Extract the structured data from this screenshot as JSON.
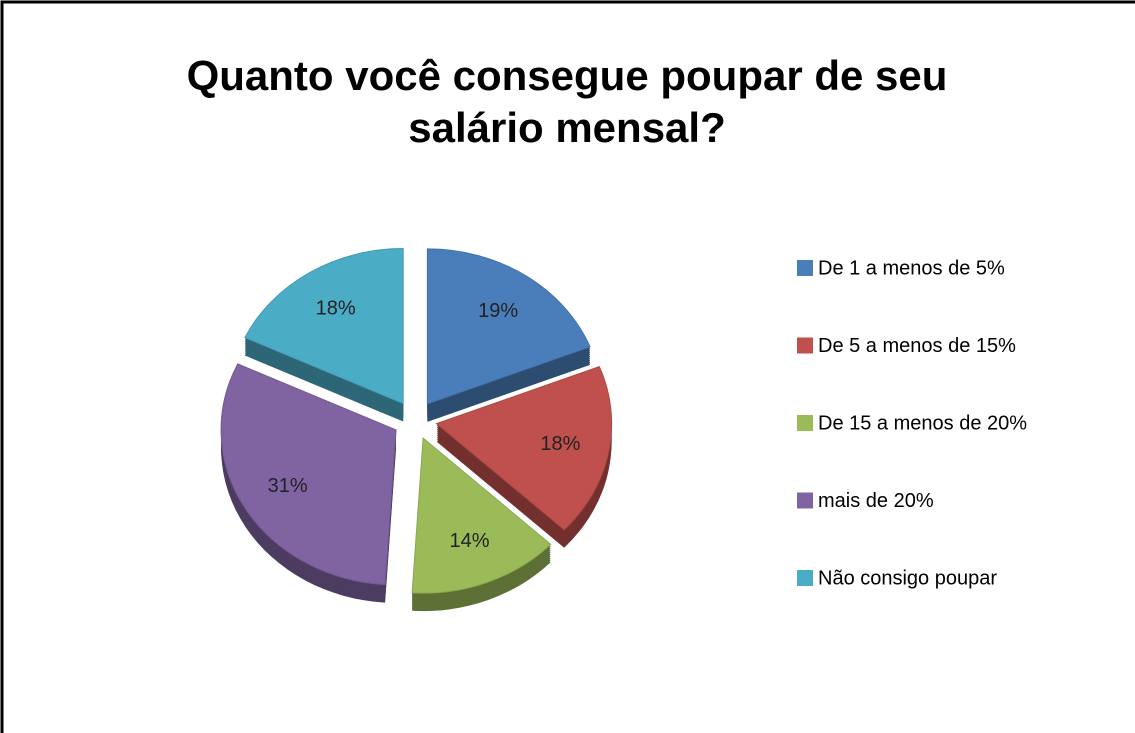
{
  "chart_data": {
    "type": "pie",
    "title": "Quanto você consegue poupar de seu salário mensal?",
    "categories": [
      "De 1 a menos de 5%",
      "De 5 a menos de 15%",
      "De 15 a menos de 20%",
      "mais de 20%",
      "Não consigo poupar"
    ],
    "values": [
      19,
      18,
      14,
      31,
      18
    ],
    "value_labels": [
      "19%",
      "18%",
      "14%",
      "31%",
      "18%"
    ],
    "colors": [
      "#4a7ebb",
      "#c0504d",
      "#9bbb59",
      "#8064a2",
      "#4bacc6"
    ],
    "legend": "right"
  }
}
